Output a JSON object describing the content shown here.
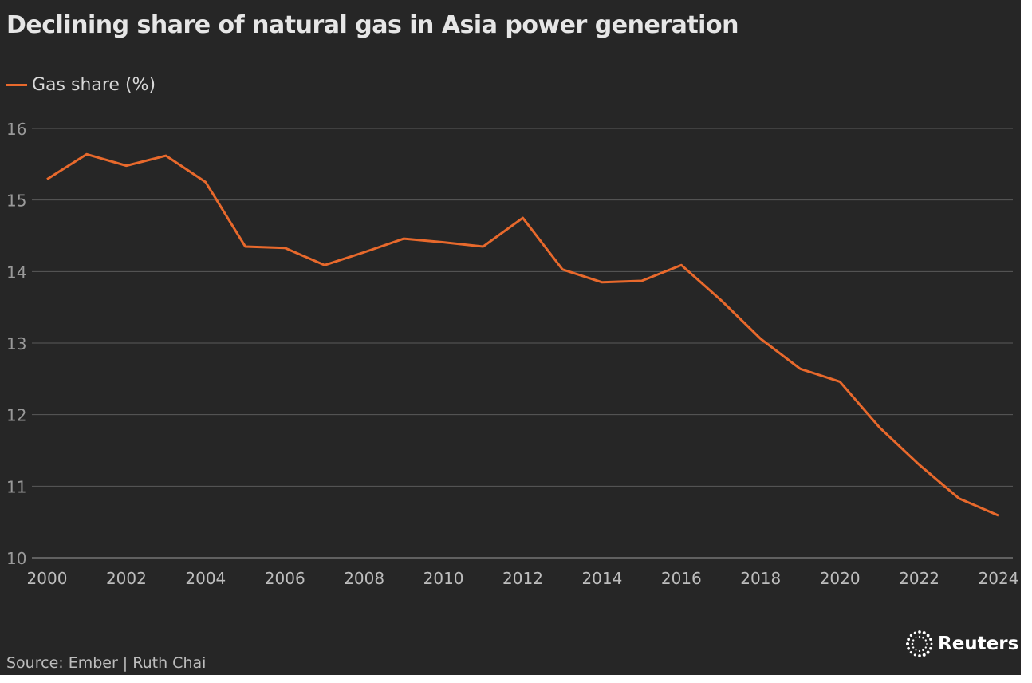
{
  "chart_data": {
    "type": "line",
    "title": "Declining share of natural gas in Asia power generation",
    "xlabel": "",
    "ylabel": "",
    "ylim": [
      10,
      16
    ],
    "xlim": [
      2000,
      2024
    ],
    "yticks": [
      10,
      11,
      12,
      13,
      14,
      15,
      16
    ],
    "xticks": [
      2000,
      2002,
      2004,
      2006,
      2008,
      2010,
      2012,
      2014,
      2016,
      2018,
      2020,
      2022,
      2024
    ],
    "grid": true,
    "legend_placement": "top-left",
    "x": [
      2000,
      2001,
      2002,
      2003,
      2004,
      2005,
      2006,
      2007,
      2008,
      2009,
      2010,
      2011,
      2012,
      2013,
      2014,
      2015,
      2016,
      2017,
      2018,
      2019,
      2020,
      2021,
      2022,
      2023,
      2024
    ],
    "series": [
      {
        "name": "Gas share (%)",
        "color": "#e8692c",
        "values": [
          15.29,
          15.64,
          15.48,
          15.62,
          15.25,
          14.35,
          14.33,
          14.09,
          14.27,
          14.46,
          14.41,
          14.35,
          14.75,
          14.03,
          13.85,
          13.87,
          14.09,
          13.6,
          13.06,
          12.64,
          12.46,
          11.82,
          11.3,
          10.83,
          10.59
        ]
      }
    ]
  },
  "footer": {
    "source": "Source: Ember | Ruth Chai",
    "logo": "Reuters"
  },
  "colors": {
    "background": "#262626",
    "grid": "#5a5a5a",
    "line": "#e8692c"
  }
}
